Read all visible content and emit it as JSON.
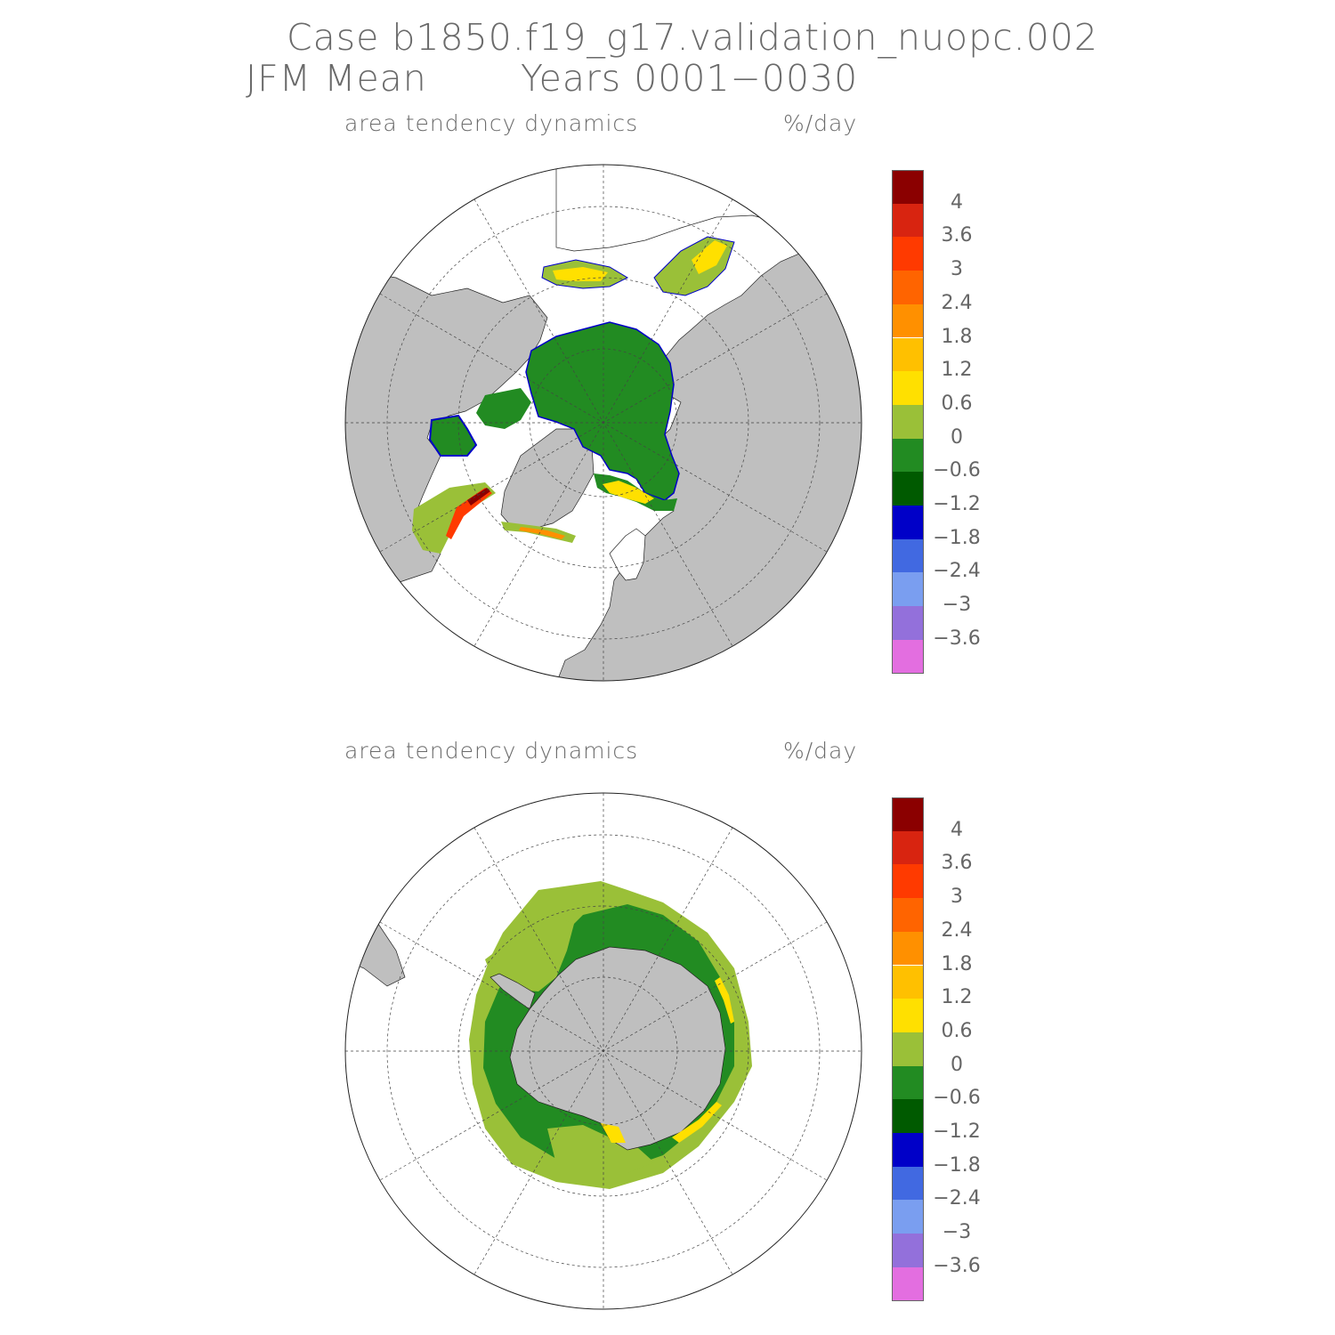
{
  "title": {
    "line1": "Case b1850.f19_g17.validation_nuopc.002",
    "line2_left": "JFM Mean",
    "line2_right": "Years 0001−0030"
  },
  "panels": [
    {
      "id": "north",
      "variable_label": "area tendency dynamics",
      "units_label": "%/day",
      "hemisphere": "north polar stereographic"
    },
    {
      "id": "south",
      "variable_label": "area tendency dynamics",
      "units_label": "%/day",
      "hemisphere": "south polar stereographic"
    }
  ],
  "colorbar": {
    "colors": [
      "#8b0000",
      "#d82410",
      "#ff3a00",
      "#ff6400",
      "#ff9000",
      "#ffc000",
      "#ffe000",
      "#9ac038",
      "#228b22",
      "#005a00",
      "#0000c8",
      "#4169e1",
      "#7a9ef0",
      "#9370db",
      "#e36ee0"
    ],
    "tick_labels": [
      "4",
      "3.6",
      "3",
      "2.4",
      "1.8",
      "1.2",
      "0.6",
      "0",
      "−0.6",
      "−1.2",
      "−1.8",
      "−2.4",
      "−3",
      "−3.6"
    ]
  },
  "map_colors": {
    "land": "#bfbfbf",
    "ocean_no_ice": "#ffffff",
    "grid": "#555555"
  }
}
